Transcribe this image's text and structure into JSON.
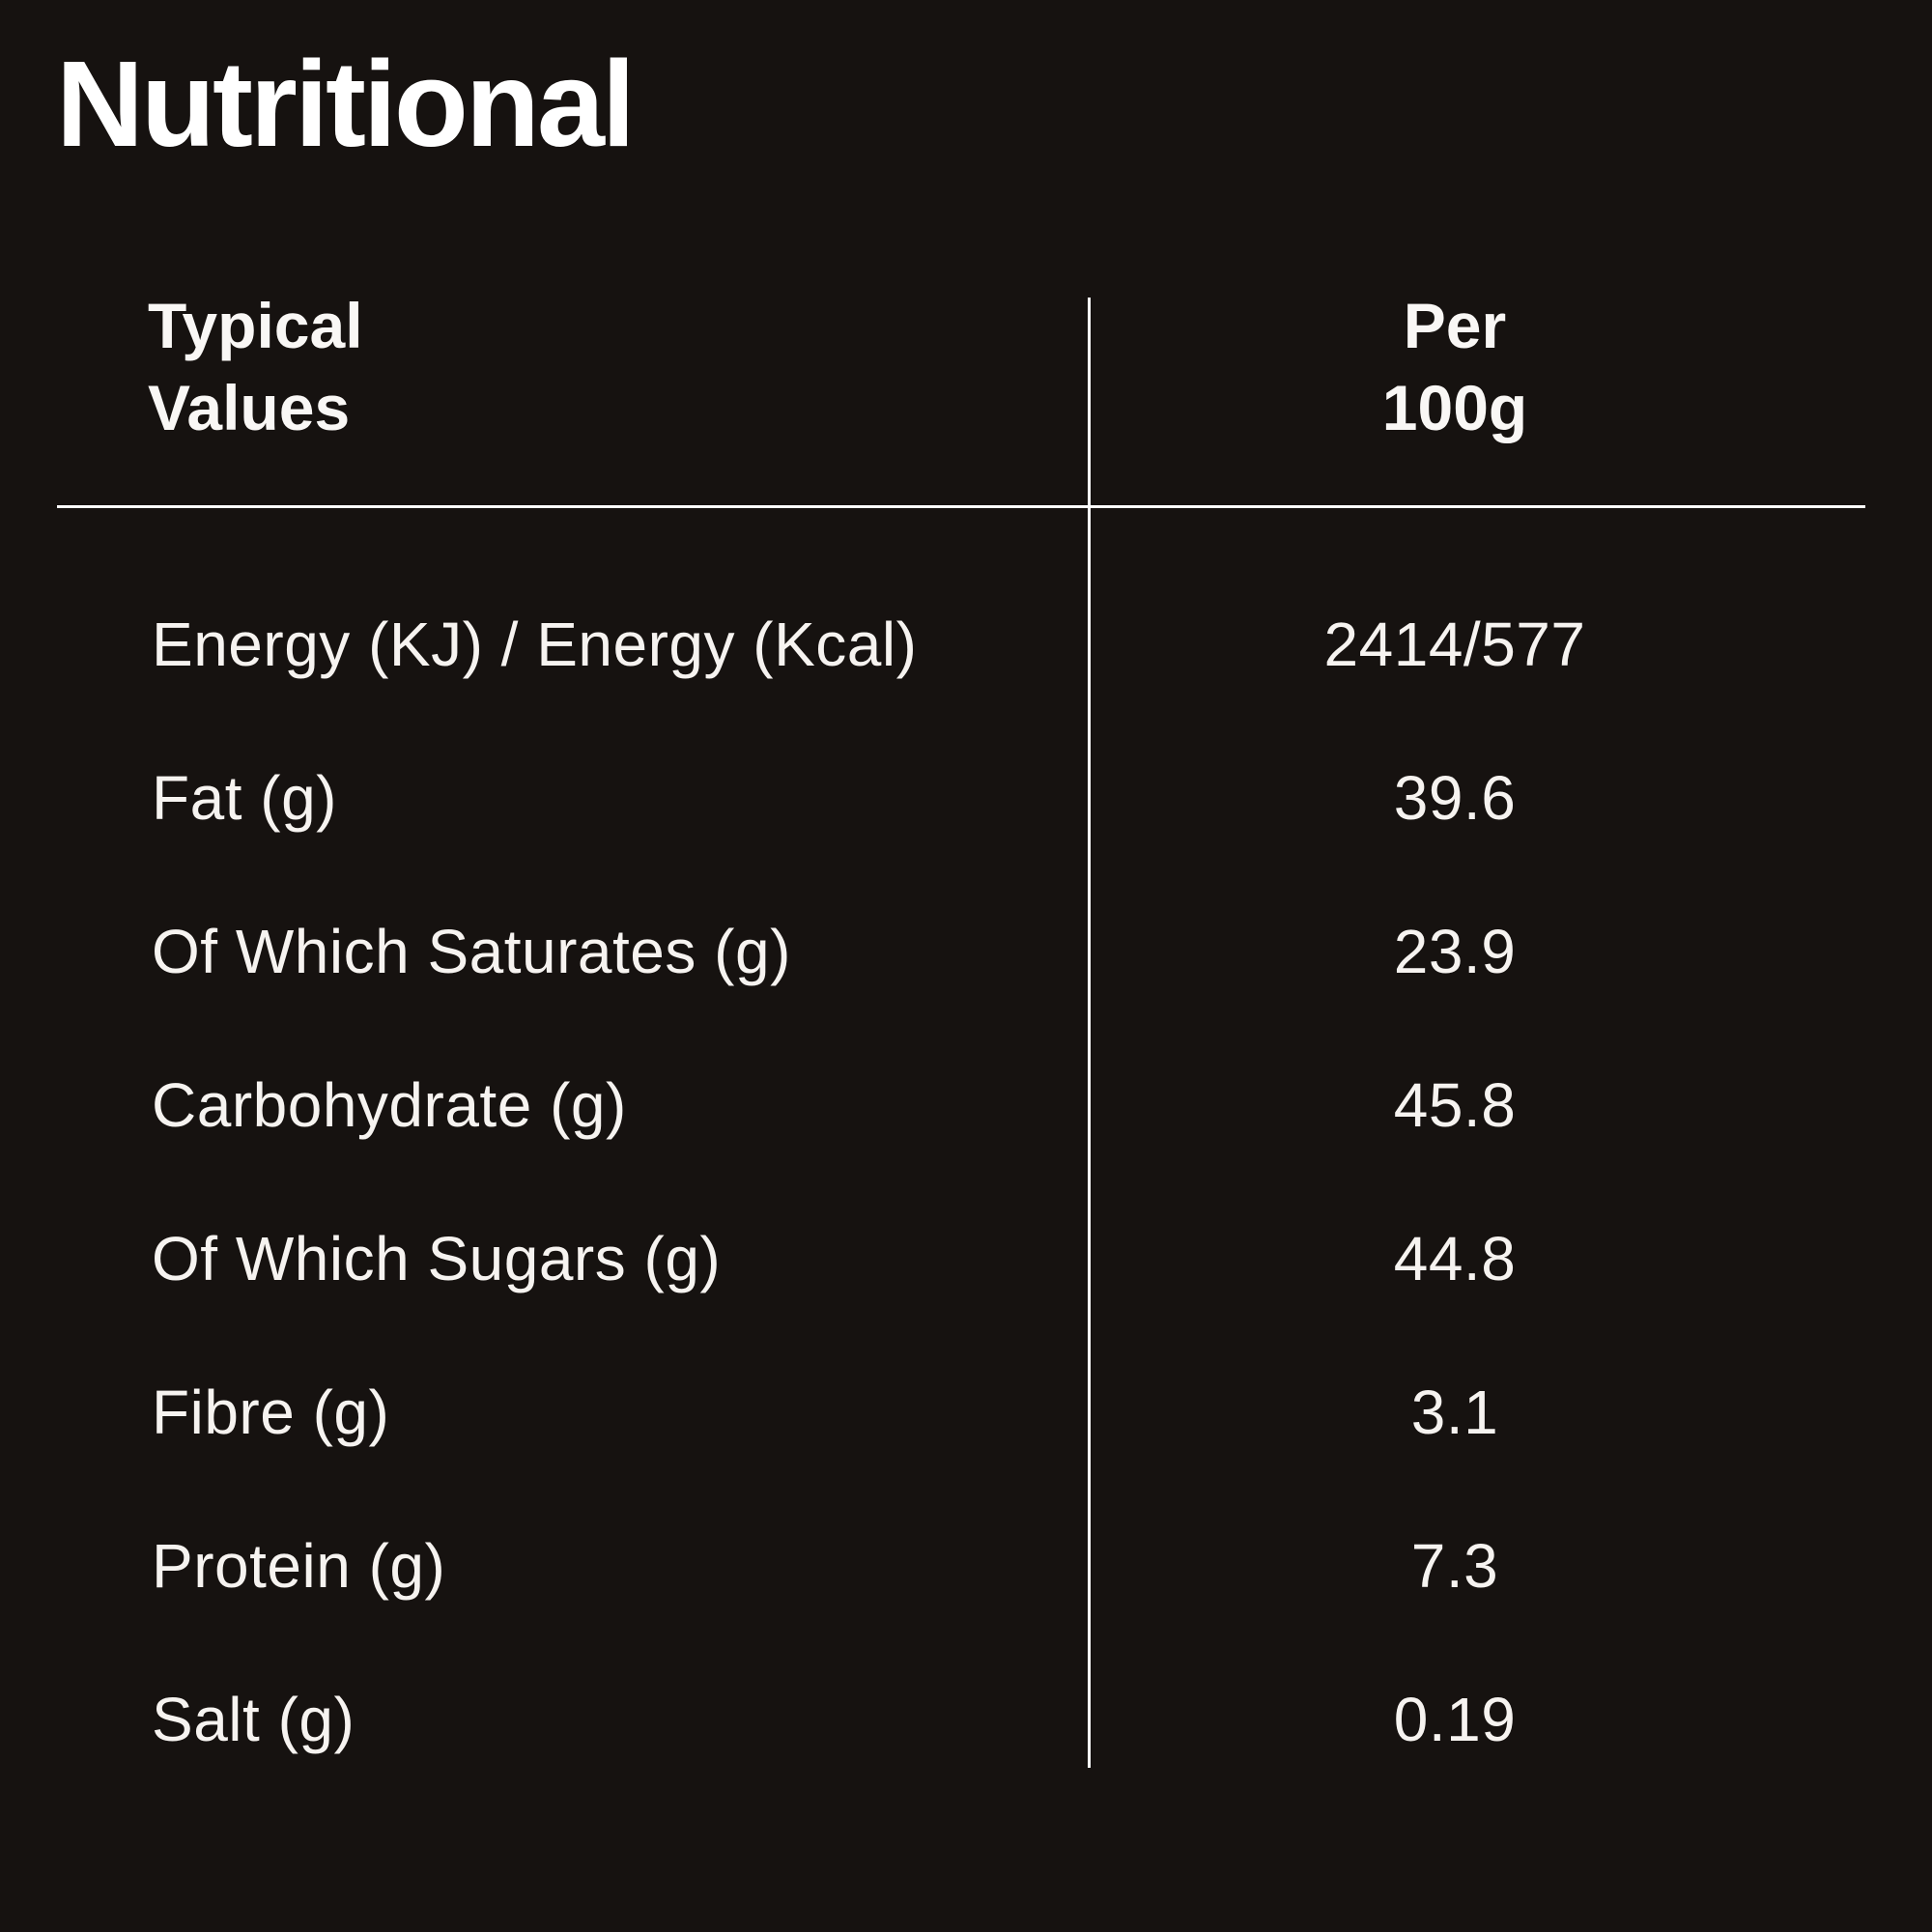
{
  "page": {
    "title": "Nutritional",
    "background_color": "#161210",
    "text_color": "#f6f3f0",
    "rule_color": "#ffffff"
  },
  "table": {
    "header": {
      "left_line1": "Typical",
      "left_line2": "Values",
      "right_line1": "Per",
      "right_line2": "100g"
    },
    "rows": [
      {
        "label": "Energy (KJ) / Energy (Kcal)",
        "value": "2414/577"
      },
      {
        "label": "Fat (g)",
        "value": "39.6"
      },
      {
        "label": "Of Which Saturates (g)",
        "value": "23.9"
      },
      {
        "label": "Carbohydrate (g)",
        "value": "45.8"
      },
      {
        "label": "Of Which Sugars (g)",
        "value": "44.8"
      },
      {
        "label": "Fibre (g)",
        "value": "3.1"
      },
      {
        "label": "Protein (g)",
        "value": "7.3"
      },
      {
        "label": "Salt (g)",
        "value": "0.19"
      }
    ]
  }
}
